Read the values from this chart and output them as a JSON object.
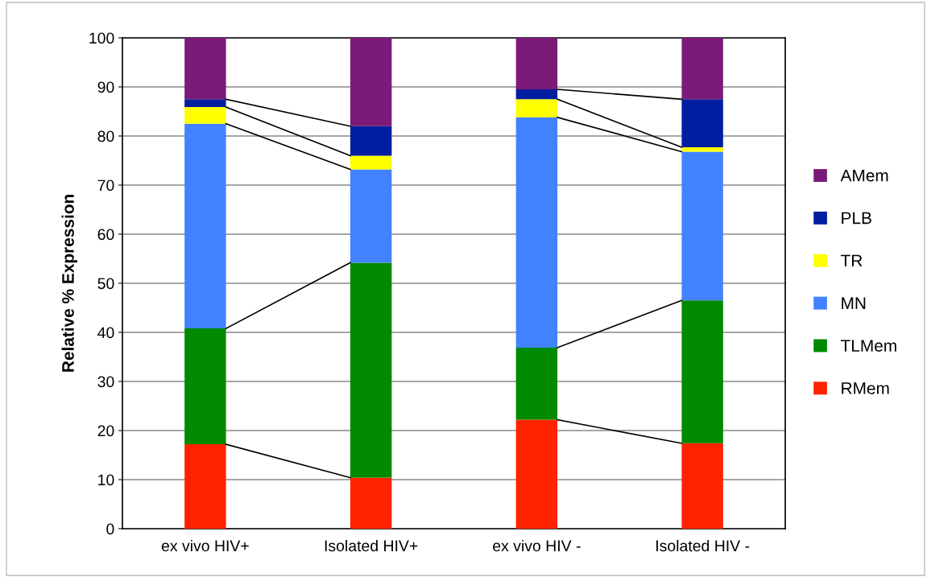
{
  "chart_data": {
    "type": "bar",
    "stacked": true,
    "ylabel": "Relative % Expression",
    "categories": [
      "ex vivo HIV+",
      "Isolated HIV+",
      "ex vivo HIV -",
      "Isolated HIV -"
    ],
    "series": [
      {
        "name": "RMem",
        "color": "#ff2200",
        "values": [
          17.2,
          10.4,
          22.2,
          17.4
        ]
      },
      {
        "name": "TLMem",
        "color": "#008a00",
        "values": [
          23.6,
          43.8,
          14.7,
          29.1
        ]
      },
      {
        "name": "MN",
        "color": "#4282ff",
        "values": [
          41.7,
          19.0,
          46.9,
          30.3
        ]
      },
      {
        "name": "TR",
        "color": "#ffff00",
        "values": [
          3.4,
          2.8,
          3.7,
          0.9
        ]
      },
      {
        "name": "PLB",
        "color": "#001ea0",
        "values": [
          1.6,
          6.0,
          2.0,
          9.8
        ]
      },
      {
        "name": "AMem",
        "color": "#7b1a78",
        "values": [
          12.5,
          18.0,
          10.5,
          12.5
        ]
      }
    ],
    "ylim": [
      0,
      100
    ],
    "yticks": [
      0,
      10,
      20,
      30,
      40,
      50,
      60,
      70,
      80,
      90,
      100
    ],
    "grid": "y",
    "legend": "right"
  }
}
